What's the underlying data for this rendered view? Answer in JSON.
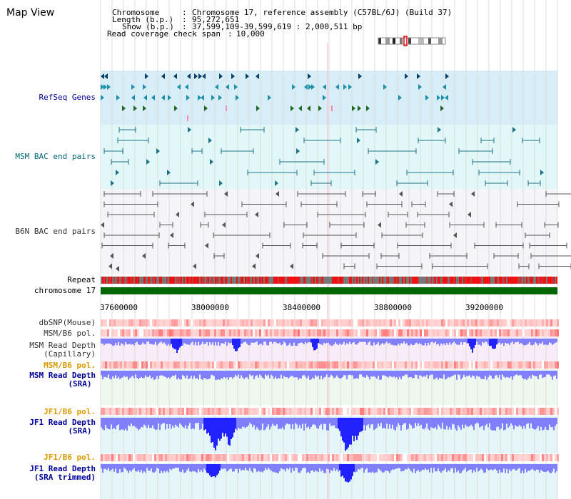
{
  "map_view": {
    "title": "Map View",
    "info": {
      "chromosome_label": "Chromosome",
      "chromosome_value": "Chromosome 17, reference assembly (C57BL/6J) (Build 37)",
      "length_label": "Length (b.p.)",
      "length_value": "95,272,651",
      "show_label": "Show (b.p.)",
      "show_value": "37,599,109-39,599,619 : 2,000,511 bp",
      "span_label": "Read coverage check span",
      "span_value": "10,000"
    },
    "axis": {
      "ticks": [
        "37600000",
        "38000000",
        "38400000",
        "38800000",
        "39200000"
      ]
    },
    "tracks": {
      "refseq_genes": "RefSeq Genes",
      "msm_bac": "MSM BAC end pairs",
      "b6n_bac": "B6N BAC end pairs",
      "repeat": "Repeat",
      "chromosome": "chromosome 17",
      "dbsnp": "dbSNP(Mouse)",
      "msm_b6_pol_1": "MSM/B6 pol.",
      "msm_depth_cap_1": "MSM Read Depth",
      "msm_depth_cap_2": "(Capillary)",
      "msm_b6_pol_2": "MSM/B6 pol.",
      "msm_depth_sra_1": "MSM Read Depth",
      "msm_depth_sra_2": "(SRA)",
      "jf1_pol_1": "JF1/B6 pol.",
      "jf1_depth_sra_1": "JF1 Read Depth",
      "jf1_depth_sra_2": "(SRA)",
      "jf1_pol_2": "JF1/B6 pol.",
      "jf1_depth_trim_1": "JF1 Read Depth",
      "jf1_depth_trim_2": "(SRA trimmed)"
    },
    "colors": {
      "refseq_bg": "#d7eef8",
      "bac_bg": "#e2f7f8",
      "msm_bac_feature": "#1c7486",
      "b6n_feature": "#555555",
      "gene_dark": "#0a3f66",
      "gene_teal": "#1b90a8",
      "gene_green": "#226622",
      "chromosome_bar": "#006600",
      "repeat_red": "#ee1111",
      "repeat_gray": "#777777",
      "depth_blue": "#2222ff",
      "label_navy": "#000099",
      "label_teal": "#006677",
      "label_orange": "#dd9900",
      "label_gray": "#333333"
    }
  }
}
